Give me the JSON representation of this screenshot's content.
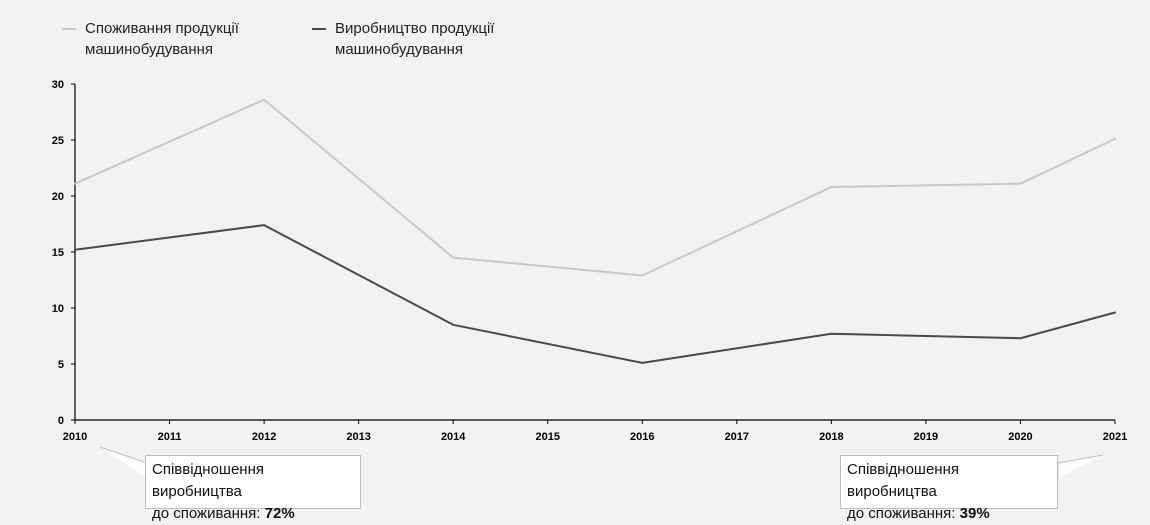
{
  "chart_data": {
    "type": "line",
    "x": [
      "2010",
      "2011",
      "2012",
      "2013",
      "2014",
      "2015",
      "2016",
      "2017",
      "2018",
      "2019",
      "2020",
      "2021"
    ],
    "x_values": [
      2010,
      2012,
      2014,
      2016,
      2018,
      2020,
      2021
    ],
    "ylim": [
      0,
      30
    ],
    "yticks": [
      "0",
      "5",
      "10",
      "15",
      "20",
      "25",
      "30"
    ],
    "grid": false,
    "legend_position": "top-left",
    "series": [
      {
        "name": "Споживання продукції машинобудування",
        "color": "#c8c8c8",
        "values": [
          21.1,
          28.6,
          14.5,
          12.9,
          20.8,
          21.1,
          25.1
        ]
      },
      {
        "name": "Виробництво продукції машинобудування",
        "color": "#4a4a4a",
        "values": [
          15.2,
          17.4,
          8.5,
          5.1,
          7.7,
          7.3,
          9.6
        ]
      }
    ]
  },
  "legend": {
    "items": [
      {
        "line1": "Споживання продукції",
        "line2": "машинобудування"
      },
      {
        "line1": "Виробництво продукції",
        "line2": "машинобудування"
      }
    ]
  },
  "callouts": [
    {
      "line1": "Співвідношення виробництва",
      "prefix": "до споживання: ",
      "value": "72%"
    },
    {
      "line1": "Співвідношення виробництва",
      "prefix": "до споживання: ",
      "value": "39%"
    }
  ]
}
